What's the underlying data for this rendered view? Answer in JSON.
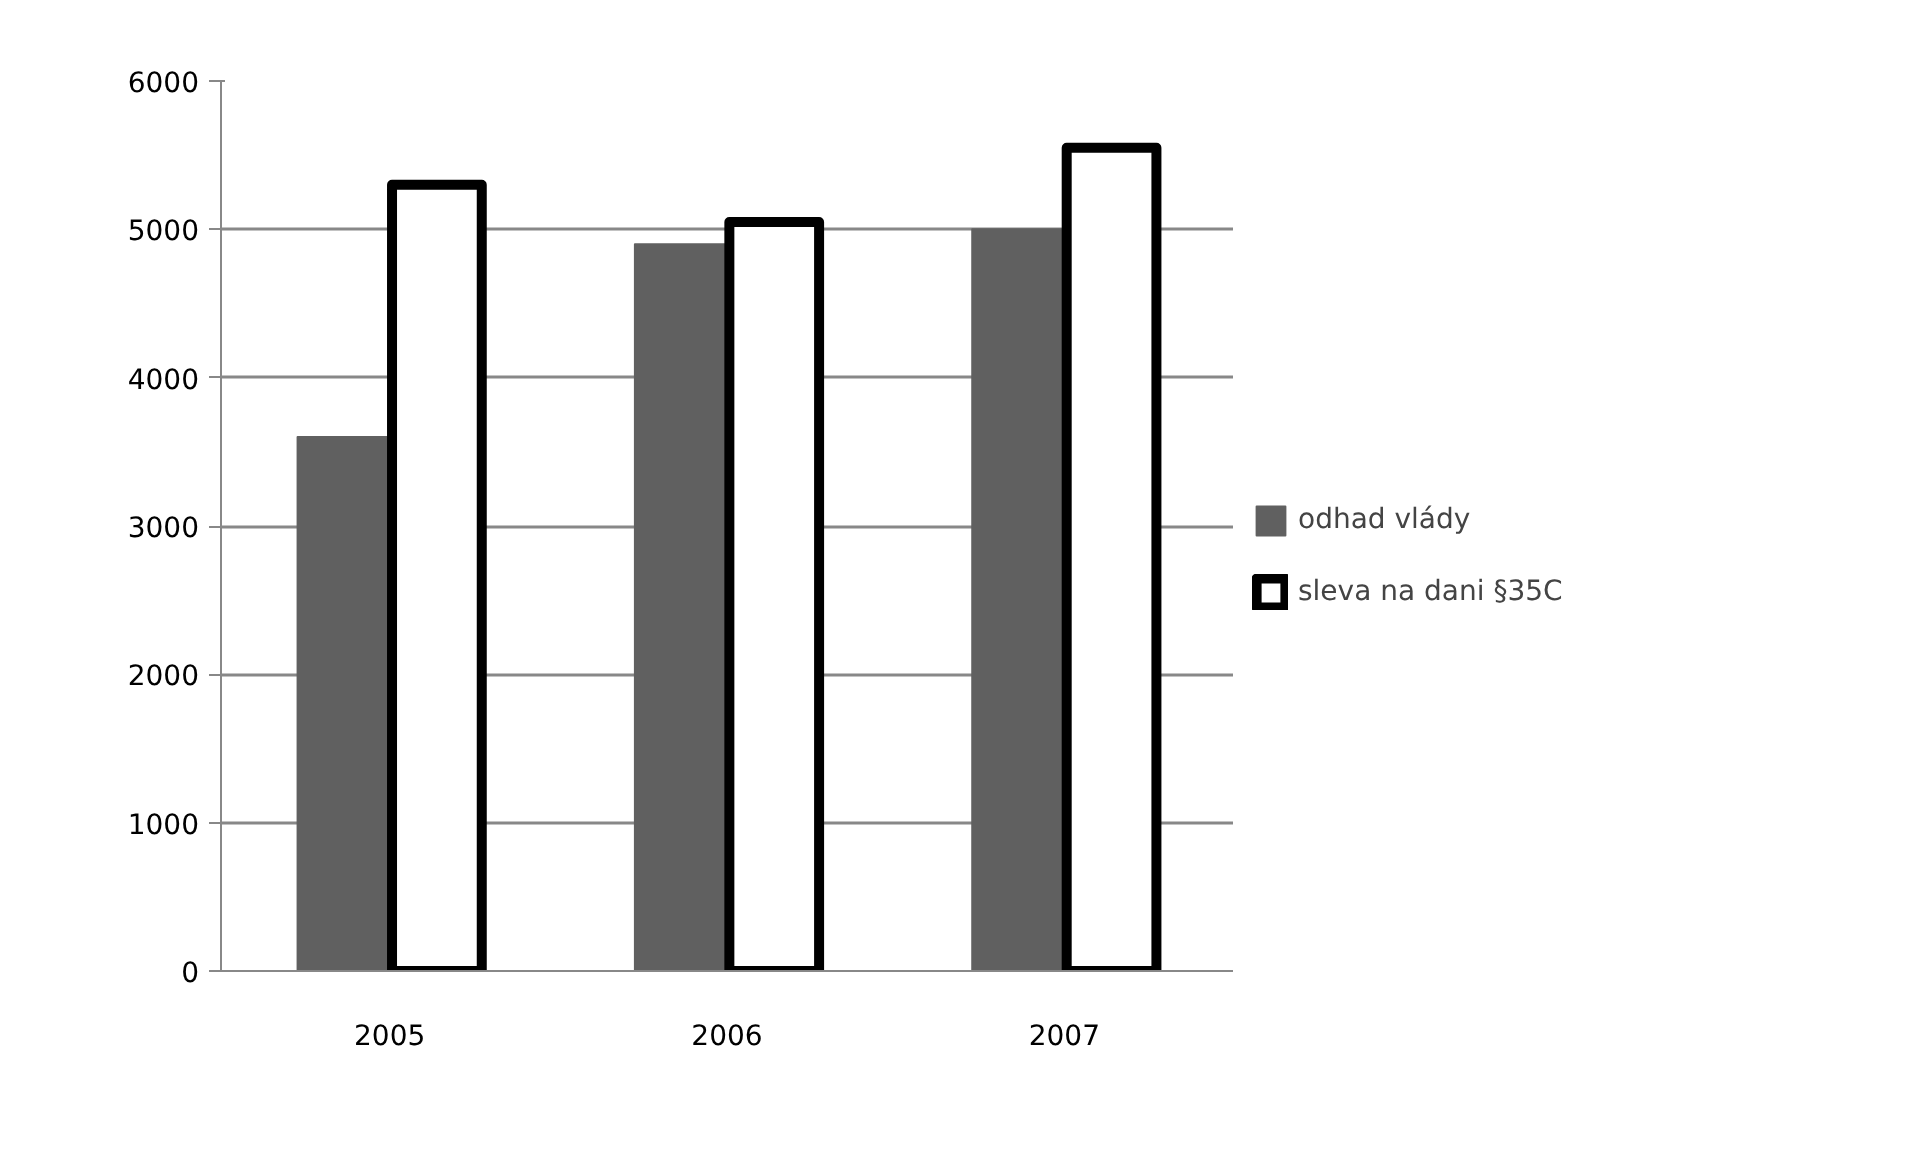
{
  "chart_data": {
    "type": "bar",
    "categories": [
      "2005",
      "2006",
      "2007"
    ],
    "series": [
      {
        "name": "odhad vlády",
        "color": "#606060",
        "values": [
          3600,
          4900,
          5000
        ]
      },
      {
        "name": "sleva na dani §35C",
        "color": "#ffffff",
        "values": [
          5300,
          5050,
          5550
        ]
      }
    ],
    "ylim": [
      0,
      6000
    ],
    "yticks": [
      0,
      1000,
      2000,
      3000,
      4000,
      5000,
      6000
    ],
    "grid": "y",
    "legend": "right"
  }
}
